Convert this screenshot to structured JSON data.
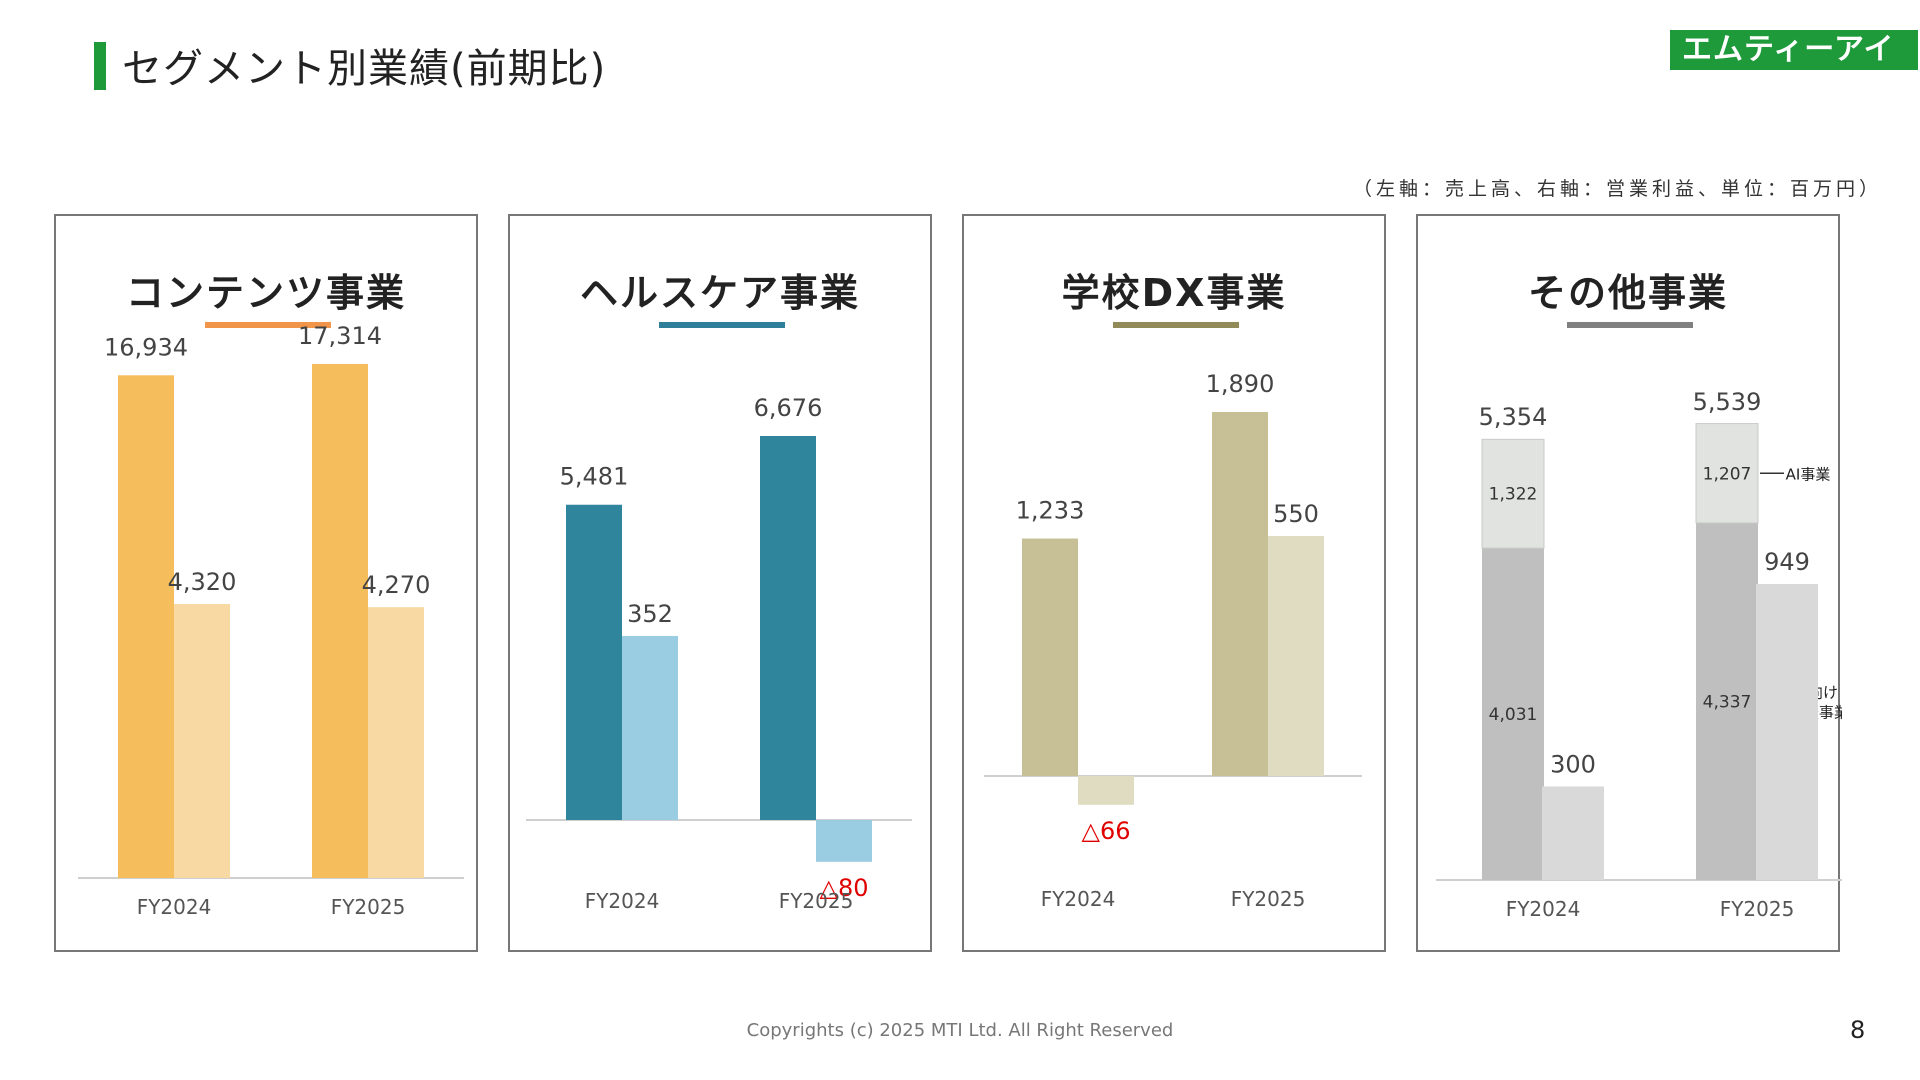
{
  "header": {
    "title": "セグメント別業績(前期比)",
    "logo_text": "エムティーアイ",
    "unit_note": "（左軸：売上高、右軸：営業利益、単位：百万円）"
  },
  "colors": {
    "brand_green": "#1e9a3a",
    "negative_label": "#e00000"
  },
  "chart_data": [
    {
      "type": "bar",
      "title": "コンテンツ事業",
      "accent": "#f0954a",
      "categories": [
        "FY2024",
        "FY2025"
      ],
      "series": [
        {
          "role": "売上高",
          "color": "#f6bd5d",
          "values": [
            16934,
            17314
          ],
          "labels": [
            "16,934",
            "17,314"
          ]
        },
        {
          "role": "営業利益",
          "color": "#f8d9a3",
          "values": [
            4320,
            4270
          ],
          "labels": [
            "4,320",
            "4,270"
          ]
        }
      ]
    },
    {
      "type": "bar",
      "title": "ヘルスケア事業",
      "accent": "#2f7f9b",
      "categories": [
        "FY2024",
        "FY2025"
      ],
      "series": [
        {
          "role": "売上高",
          "color": "#2f859c",
          "values": [
            5481,
            6676
          ],
          "labels": [
            "5,481",
            "6,676"
          ]
        },
        {
          "role": "営業利益",
          "color": "#9acde2",
          "values": [
            352,
            -80
          ],
          "labels": [
            "352",
            "△80"
          ]
        }
      ]
    },
    {
      "type": "bar",
      "title": "学校DX事業",
      "accent": "#938a5a",
      "categories": [
        "FY2024",
        "FY2025"
      ],
      "series": [
        {
          "role": "売上高",
          "color": "#c7bf96",
          "values": [
            1233,
            1890
          ],
          "labels": [
            "1,233",
            "1,890"
          ]
        },
        {
          "role": "営業利益",
          "color": "#dfdcc2",
          "values": [
            -66,
            550
          ],
          "labels": [
            "△66",
            "550"
          ]
        }
      ]
    },
    {
      "type": "bar",
      "title": "その他事業",
      "accent": "#808080",
      "categories": [
        "FY2024",
        "FY2025"
      ],
      "stacked_sales": {
        "totals": [
          5354,
          5539
        ],
        "total_labels": [
          "5,354",
          "5,539"
        ],
        "segments": [
          {
            "name": "法人向け\nDX支援事業",
            "name_lines": [
              "法人向け",
              "DX支援事業"
            ],
            "color": "#bfbfbf",
            "values": [
              4031,
              4337
            ],
            "labels": [
              "4,031",
              "4,337"
            ]
          },
          {
            "name": "AI事業",
            "name_lines": [
              "AI事業"
            ],
            "color": "#e1e3e1",
            "values": [
              1322,
              1207
            ],
            "labels": [
              "1,322",
              "1,207"
            ]
          }
        ]
      },
      "series": [
        {
          "role": "営業利益",
          "color": "#d9d9d9",
          "values": [
            300,
            949
          ],
          "labels": [
            "300",
            "949"
          ]
        }
      ]
    }
  ],
  "footer": {
    "copyright": "Copyrights (c) 2025 MTI Ltd. All Right Reserved",
    "page_number": "8"
  }
}
